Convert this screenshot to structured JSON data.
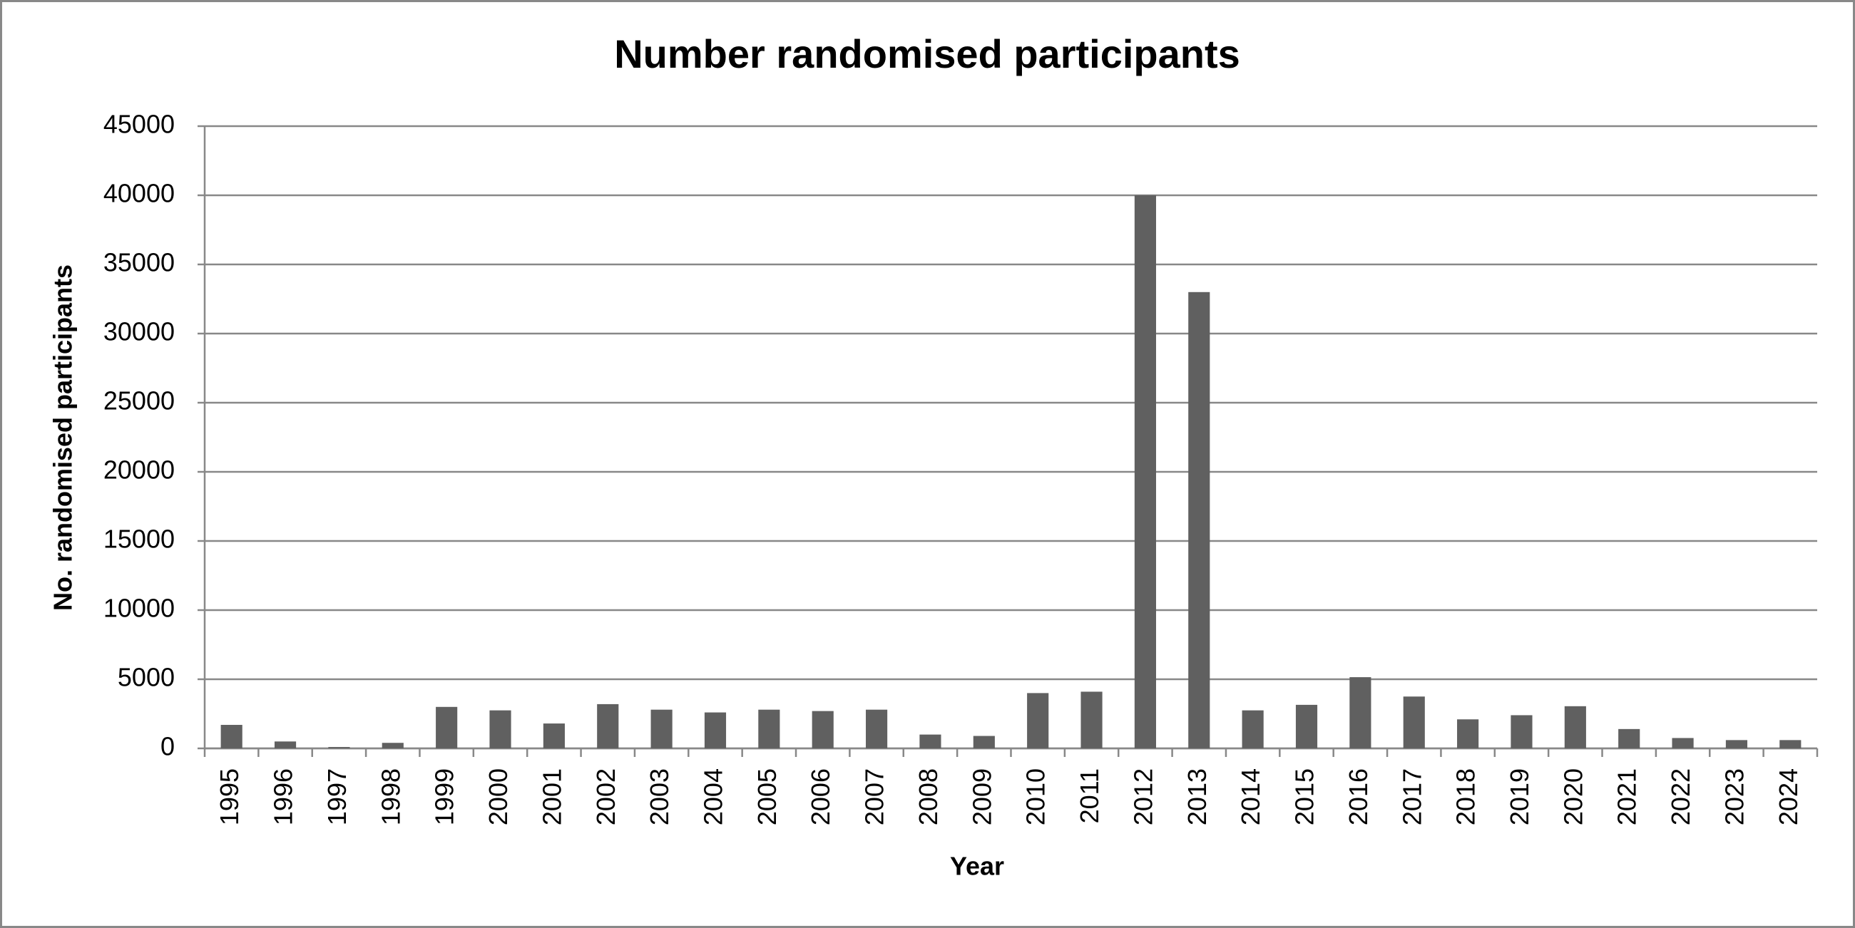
{
  "chart_data": {
    "type": "bar",
    "title": "Number randomised participants",
    "x_label": "Year",
    "y_label": "No. randomised participants",
    "categories": [
      "1995",
      "1996",
      "1997",
      "1998",
      "1999",
      "2000",
      "2001",
      "2002",
      "2003",
      "2004",
      "2005",
      "2006",
      "2007",
      "2008",
      "2009",
      "2010",
      "2011",
      "2012",
      "2013",
      "2014",
      "2015",
      "2016",
      "2017",
      "2018",
      "2019",
      "2020",
      "2021",
      "2022",
      "2023",
      "2024"
    ],
    "values": [
      1700,
      500,
      100,
      400,
      3000,
      2750,
      1800,
      3200,
      2800,
      2600,
      2800,
      2700,
      2800,
      1000,
      900,
      4000,
      4100,
      40000,
      33000,
      2750,
      3150,
      5150,
      3750,
      2100,
      2400,
      3050,
      1400,
      750,
      600,
      600
    ],
    "color": "#606060",
    "ylim": [
      0,
      45000
    ],
    "yticks": [
      0,
      5000,
      10000,
      15000,
      20000,
      25000,
      30000,
      35000,
      40000,
      45000
    ],
    "grid": true
  }
}
